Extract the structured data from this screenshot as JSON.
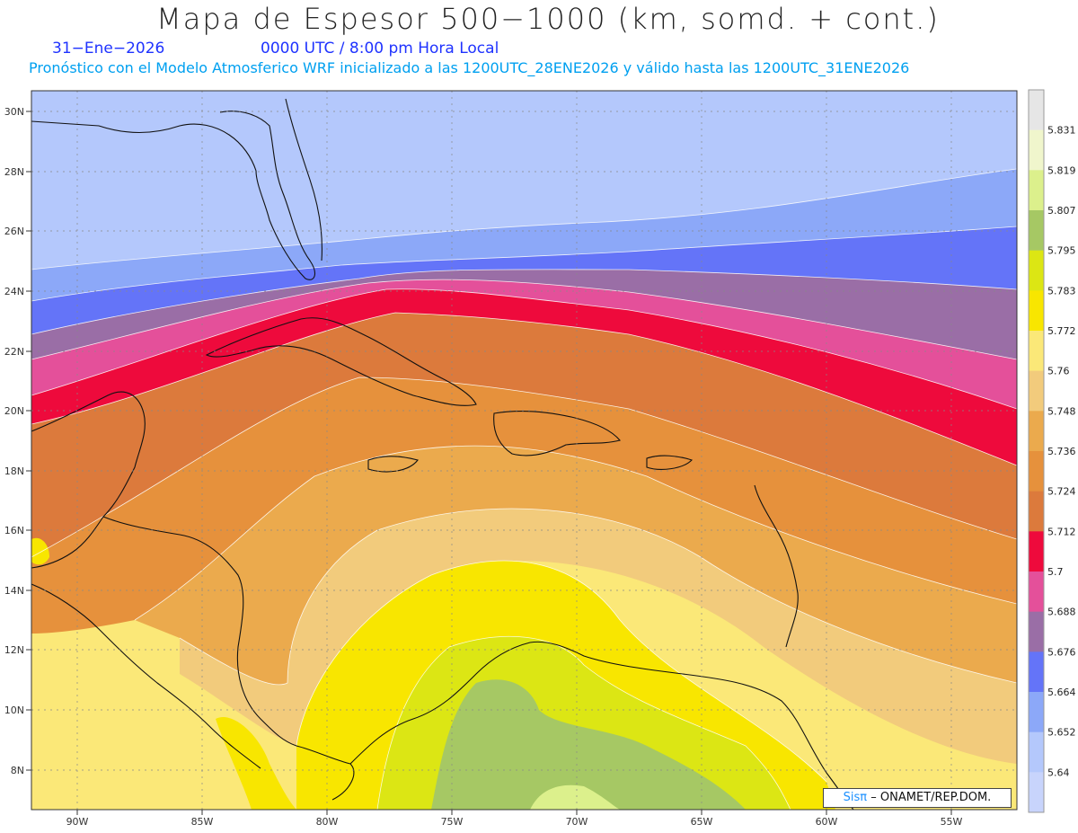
{
  "header": {
    "title": "Mapa de Espesor 500−1000 (km, somd. + cont.)",
    "date": "31−Ene−2026",
    "time": "0000 UTC / 8:00 pm Hora Local",
    "subtitle": "Pronóstico con el Modelo Atmosferico WRF inicializado a las 1200UTC_28ENE2026 y válido hasta las  1200UTC_31ENE2026"
  },
  "map": {
    "lat_labels": [
      "30N",
      "28N",
      "26N",
      "24N",
      "22N",
      "20N",
      "18N",
      "16N",
      "14N",
      "12N",
      "10N",
      "8N"
    ],
    "lon_labels": [
      "90W",
      "85W",
      "80W",
      "75W",
      "70W",
      "65W",
      "60W",
      "55W"
    ]
  },
  "colorbar": {
    "levels": [
      "5.831",
      "5.819",
      "5.807",
      "5.795",
      "5.783",
      "5.772",
      "5.76",
      "5.748",
      "5.736",
      "5.724",
      "5.712",
      "5.7",
      "5.688",
      "5.676",
      "5.664",
      "5.652",
      "5.64"
    ],
    "colors": [
      "#e6e6e6",
      "#f0f6cc",
      "#dcf08c",
      "#a6c864",
      "#dce614",
      "#f8e600",
      "#fbe878",
      "#f2cb7c",
      "#ebaa4d",
      "#e6913c",
      "#dc7a3c",
      "#ee0a3c",
      "#e4509a",
      "#9a6ea6",
      "#6474f8",
      "#8ca8f8",
      "#b4c8fc",
      "#c8d4fc"
    ]
  },
  "credit": {
    "sis": "Sisπ",
    "org": "– ONAMET/REP.DOM."
  }
}
